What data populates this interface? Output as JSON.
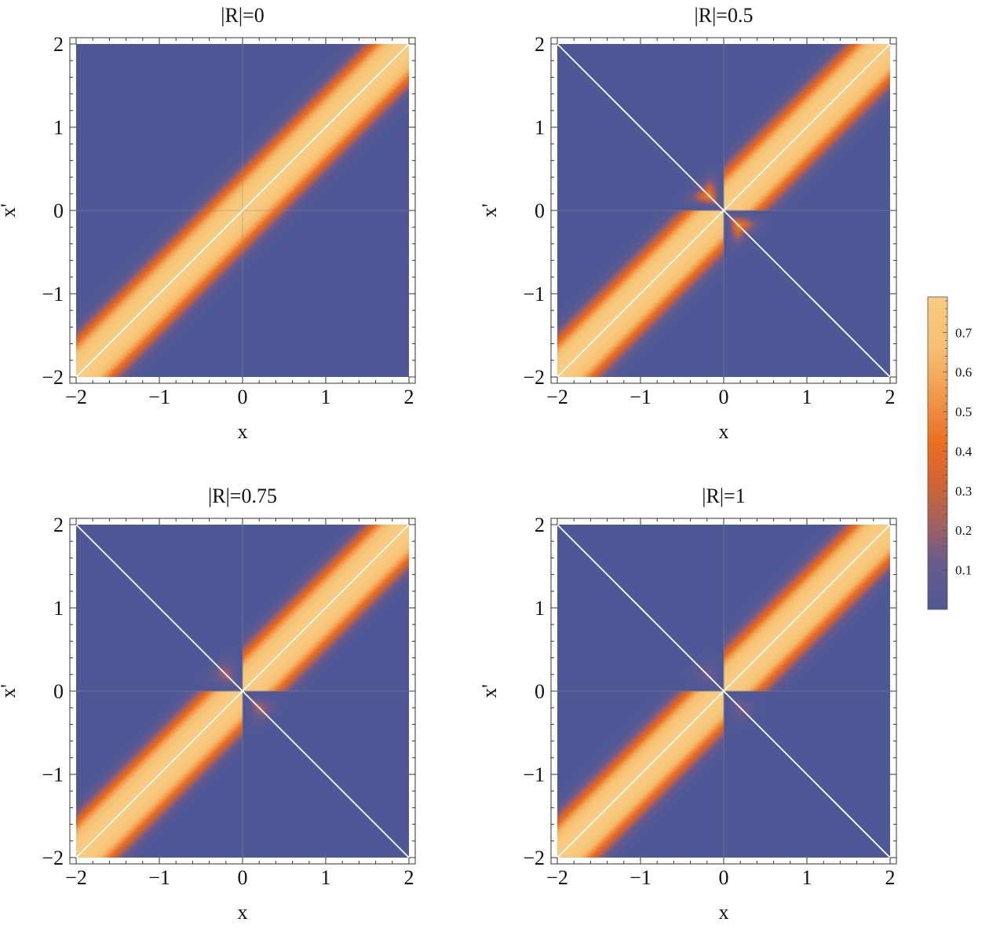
{
  "chart_data": {
    "type": "heatmap",
    "x_label": "x",
    "y_label": "x'",
    "xlim": [
      -2,
      2
    ],
    "ylim": [
      -2,
      2
    ],
    "ticks": [
      -2,
      -1,
      0,
      1,
      2
    ],
    "tick_labels": [
      "−2",
      "−1",
      "0",
      "1",
      "2"
    ],
    "grid": "faint lines at x=0 and x'=0",
    "panels": [
      {
        "title": "|R|=0",
        "R": 0,
        "anti_diagonal_line": false
      },
      {
        "title": "|R|=0.5",
        "R": 0.5,
        "anti_diagonal_line": true
      },
      {
        "title": "|R|=0.75",
        "R": 0.75,
        "anti_diagonal_line": true
      },
      {
        "title": "|R|=1",
        "R": 1,
        "anti_diagonal_line": true
      }
    ],
    "overlay_lines": [
      "diagonal x'=x (white)",
      "anti-diagonal x'=-x (white, |R|>0)"
    ],
    "colorbar": {
      "placement": "right",
      "range": [
        0,
        0.79
      ],
      "tick_values": [
        0.1,
        0.2,
        0.3,
        0.4,
        0.5,
        0.6,
        0.7
      ],
      "tick_labels": [
        "0.1",
        "0.2",
        "0.3",
        "0.4",
        "0.5",
        "0.6",
        "0.7"
      ]
    },
    "colormap": [
      {
        "v": 0.0,
        "color": "#4e5897"
      },
      {
        "v": 0.12,
        "color": "#6a5a8c"
      },
      {
        "v": 0.22,
        "color": "#a5615e"
      },
      {
        "v": 0.33,
        "color": "#d6652f"
      },
      {
        "v": 0.42,
        "color": "#ea6e22"
      },
      {
        "v": 0.55,
        "color": "#f29c4e"
      },
      {
        "v": 0.66,
        "color": "#f6bf72"
      },
      {
        "v": 0.79,
        "color": "#f8cb80"
      }
    ]
  }
}
